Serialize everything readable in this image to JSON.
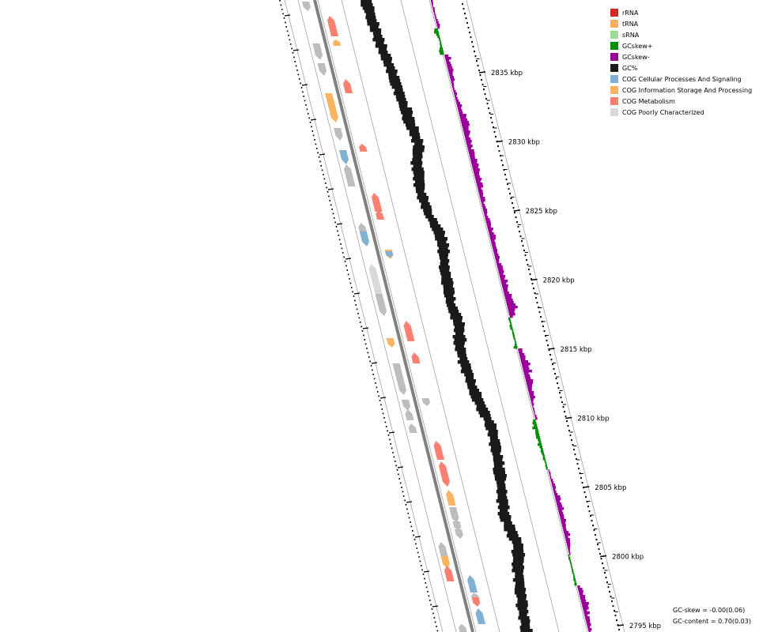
{
  "legend": [
    {
      "label": "rRNA",
      "color": "#d62728"
    },
    {
      "label": "tRNA",
      "color": "#fdae61"
    },
    {
      "label": "sRNA",
      "color": "#a1d99b"
    },
    {
      "label": "GCskew+",
      "color": "#008f00"
    },
    {
      "label": "GCskew-",
      "color": "#9a009a"
    },
    {
      "label": "GC%",
      "color": "#1a1a1a"
    },
    {
      "label": "COG Cellular Processes And Signaling",
      "color": "#80b1d3"
    },
    {
      "label": "COG Information Storage And Processing",
      "color": "#fdb462"
    },
    {
      "label": "COG Metabolism",
      "color": "#fb8072"
    },
    {
      "label": "COG Poorly Characterized",
      "color": "#d9d9d9"
    }
  ],
  "ticks": [
    {
      "label": "2835 kbp",
      "value": 2835
    },
    {
      "label": "2830 kbp",
      "value": 2830
    },
    {
      "label": "2825 kbp",
      "value": 2825
    },
    {
      "label": "2820 kbp",
      "value": 2820
    },
    {
      "label": "2815 kbp",
      "value": 2815
    },
    {
      "label": "2810 kbp",
      "value": 2810
    },
    {
      "label": "2805 kbp",
      "value": 2805
    },
    {
      "label": "2800 kbp",
      "value": 2800
    },
    {
      "label": "2795 kbp",
      "value": 2795
    }
  ],
  "stats": {
    "gc_skew": "GC-skew = -0.00(0.06)",
    "gc_content": "GC-content = 0.70(0.03)"
  }
}
